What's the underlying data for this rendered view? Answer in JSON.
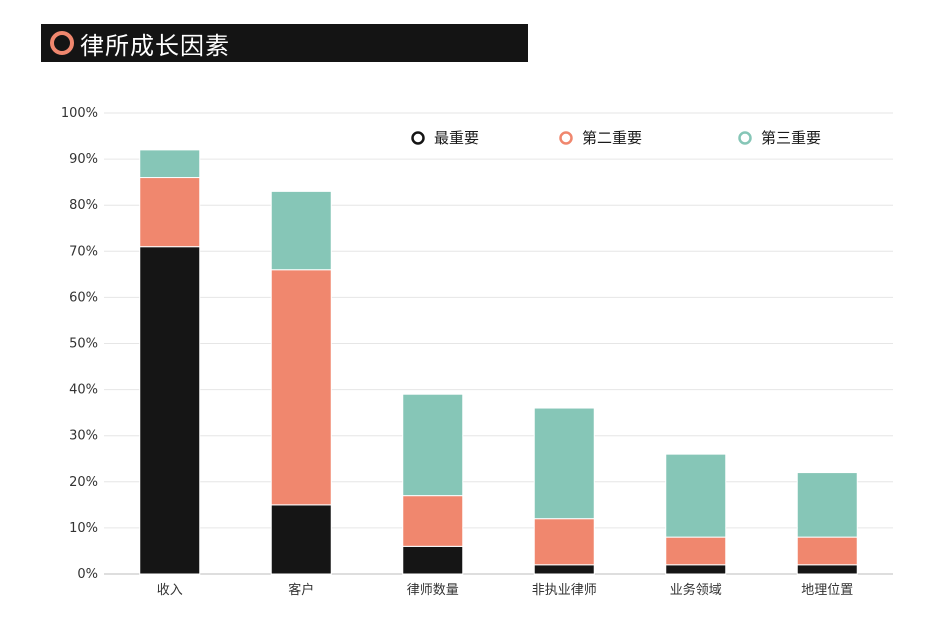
{
  "header": {
    "title": "律所成长因素"
  },
  "colors": {
    "most": "#151515",
    "second": "#f0876e",
    "third": "#86c6b7",
    "grid": "#e6e6e6",
    "axis": "#bdbdbd",
    "tick_text": "#333333",
    "title_bg": "#141414"
  },
  "chart_data": {
    "type": "bar",
    "stacked": true,
    "categories": [
      "收入",
      "客户",
      "律师数量",
      "非执业律师",
      "业务领域",
      "地理位置"
    ],
    "series": [
      {
        "name": "最重要",
        "color": "#151515",
        "values": [
          71,
          15,
          6,
          2,
          2,
          2
        ]
      },
      {
        "name": "第二重要",
        "color": "#f0876e",
        "values": [
          15,
          51,
          11,
          10,
          6,
          6
        ]
      },
      {
        "name": "第三重要",
        "color": "#86c6b7",
        "values": [
          6,
          17,
          22,
          24,
          18,
          14
        ]
      }
    ],
    "ylim": [
      0,
      100
    ],
    "yticks": [
      "0%",
      "10%",
      "20%",
      "30%",
      "40%",
      "50%",
      "60%",
      "70%",
      "80%",
      "90%",
      "100%"
    ],
    "grid": true,
    "legend_position": "top-right"
  }
}
